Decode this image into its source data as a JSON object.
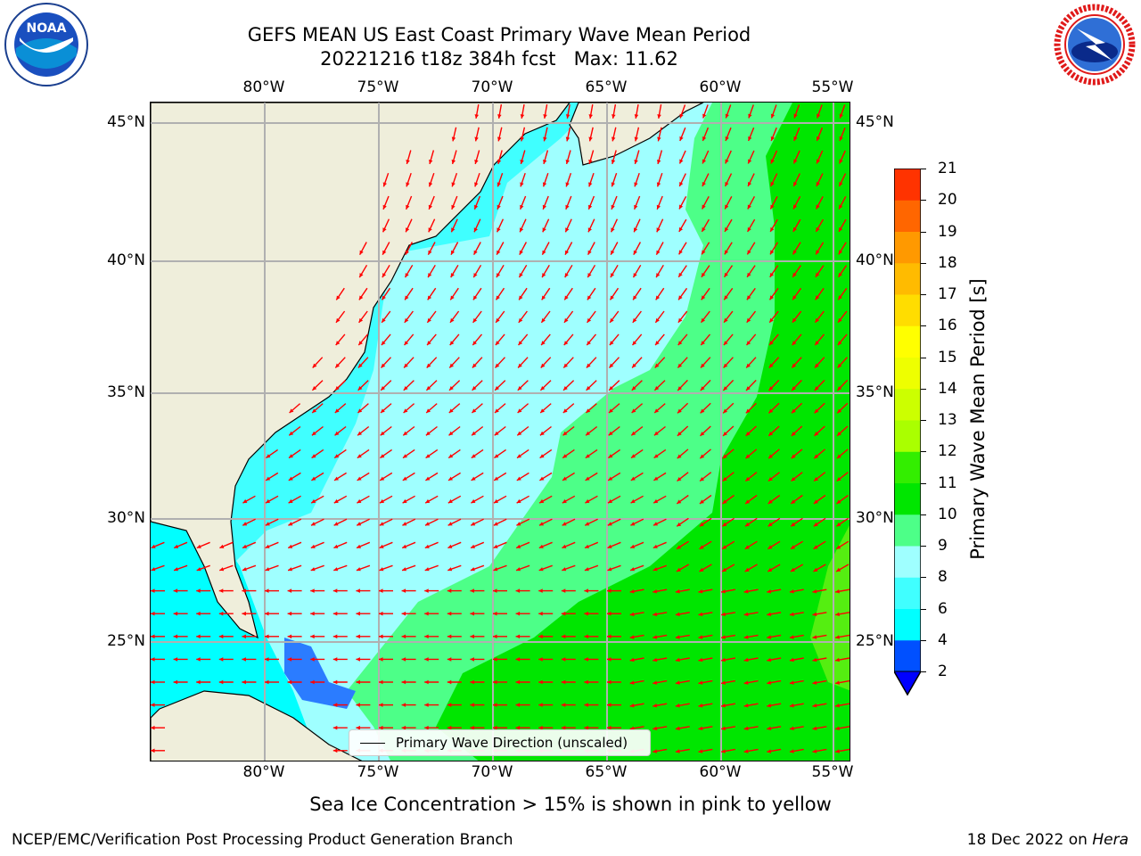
{
  "title": {
    "line1": "GEFS MEAN US East Coast Primary Wave Mean Period",
    "line2": "20221216 t18z 384h fcst   Max: 11.62"
  },
  "map": {
    "longitude_labels": [
      "80°W",
      "75°W",
      "70°W",
      "65°W",
      "60°W",
      "55°W"
    ],
    "latitude_labels": [
      "45°N",
      "40°N",
      "35°N",
      "30°N",
      "25°N"
    ],
    "grid": true,
    "land_color": "#efeedb",
    "grid_color": "#b0b0b0",
    "arrow_color": "#ff0000"
  },
  "colorbar": {
    "title": "Primary Wave Mean Period [s]",
    "tick_labels": [
      "2",
      "4",
      "6",
      "8",
      "9",
      "10",
      "11",
      "12",
      "13",
      "14",
      "15",
      "16",
      "17",
      "18",
      "19",
      "20",
      "21"
    ],
    "colors": [
      "#0050ff",
      "#00ffff",
      "#40ffff",
      "#9fffff",
      "#4dff88",
      "#00e600",
      "#33ee00",
      "#aaff00",
      "#ccff00",
      "#eeff00",
      "#ffff00",
      "#ffdd00",
      "#ffbb00",
      "#ff9900",
      "#ff6600",
      "#ff3300"
    ],
    "extend_color": "#0000ff",
    "extend": "min"
  },
  "legend": {
    "label": "Primary Wave Direction (unscaled)"
  },
  "footer": {
    "sea_ice_note": "Sea Ice Concentration > 15% is shown in pink to yellow",
    "credit": "NCEP/EMC/Verification Post Processing Product Generation Branch",
    "date": "18 Dec 2022 on ",
    "machine": "Hera"
  },
  "logos": {
    "left": "NOAA",
    "right": "NATIONAL WEATHER SERVICE"
  }
}
